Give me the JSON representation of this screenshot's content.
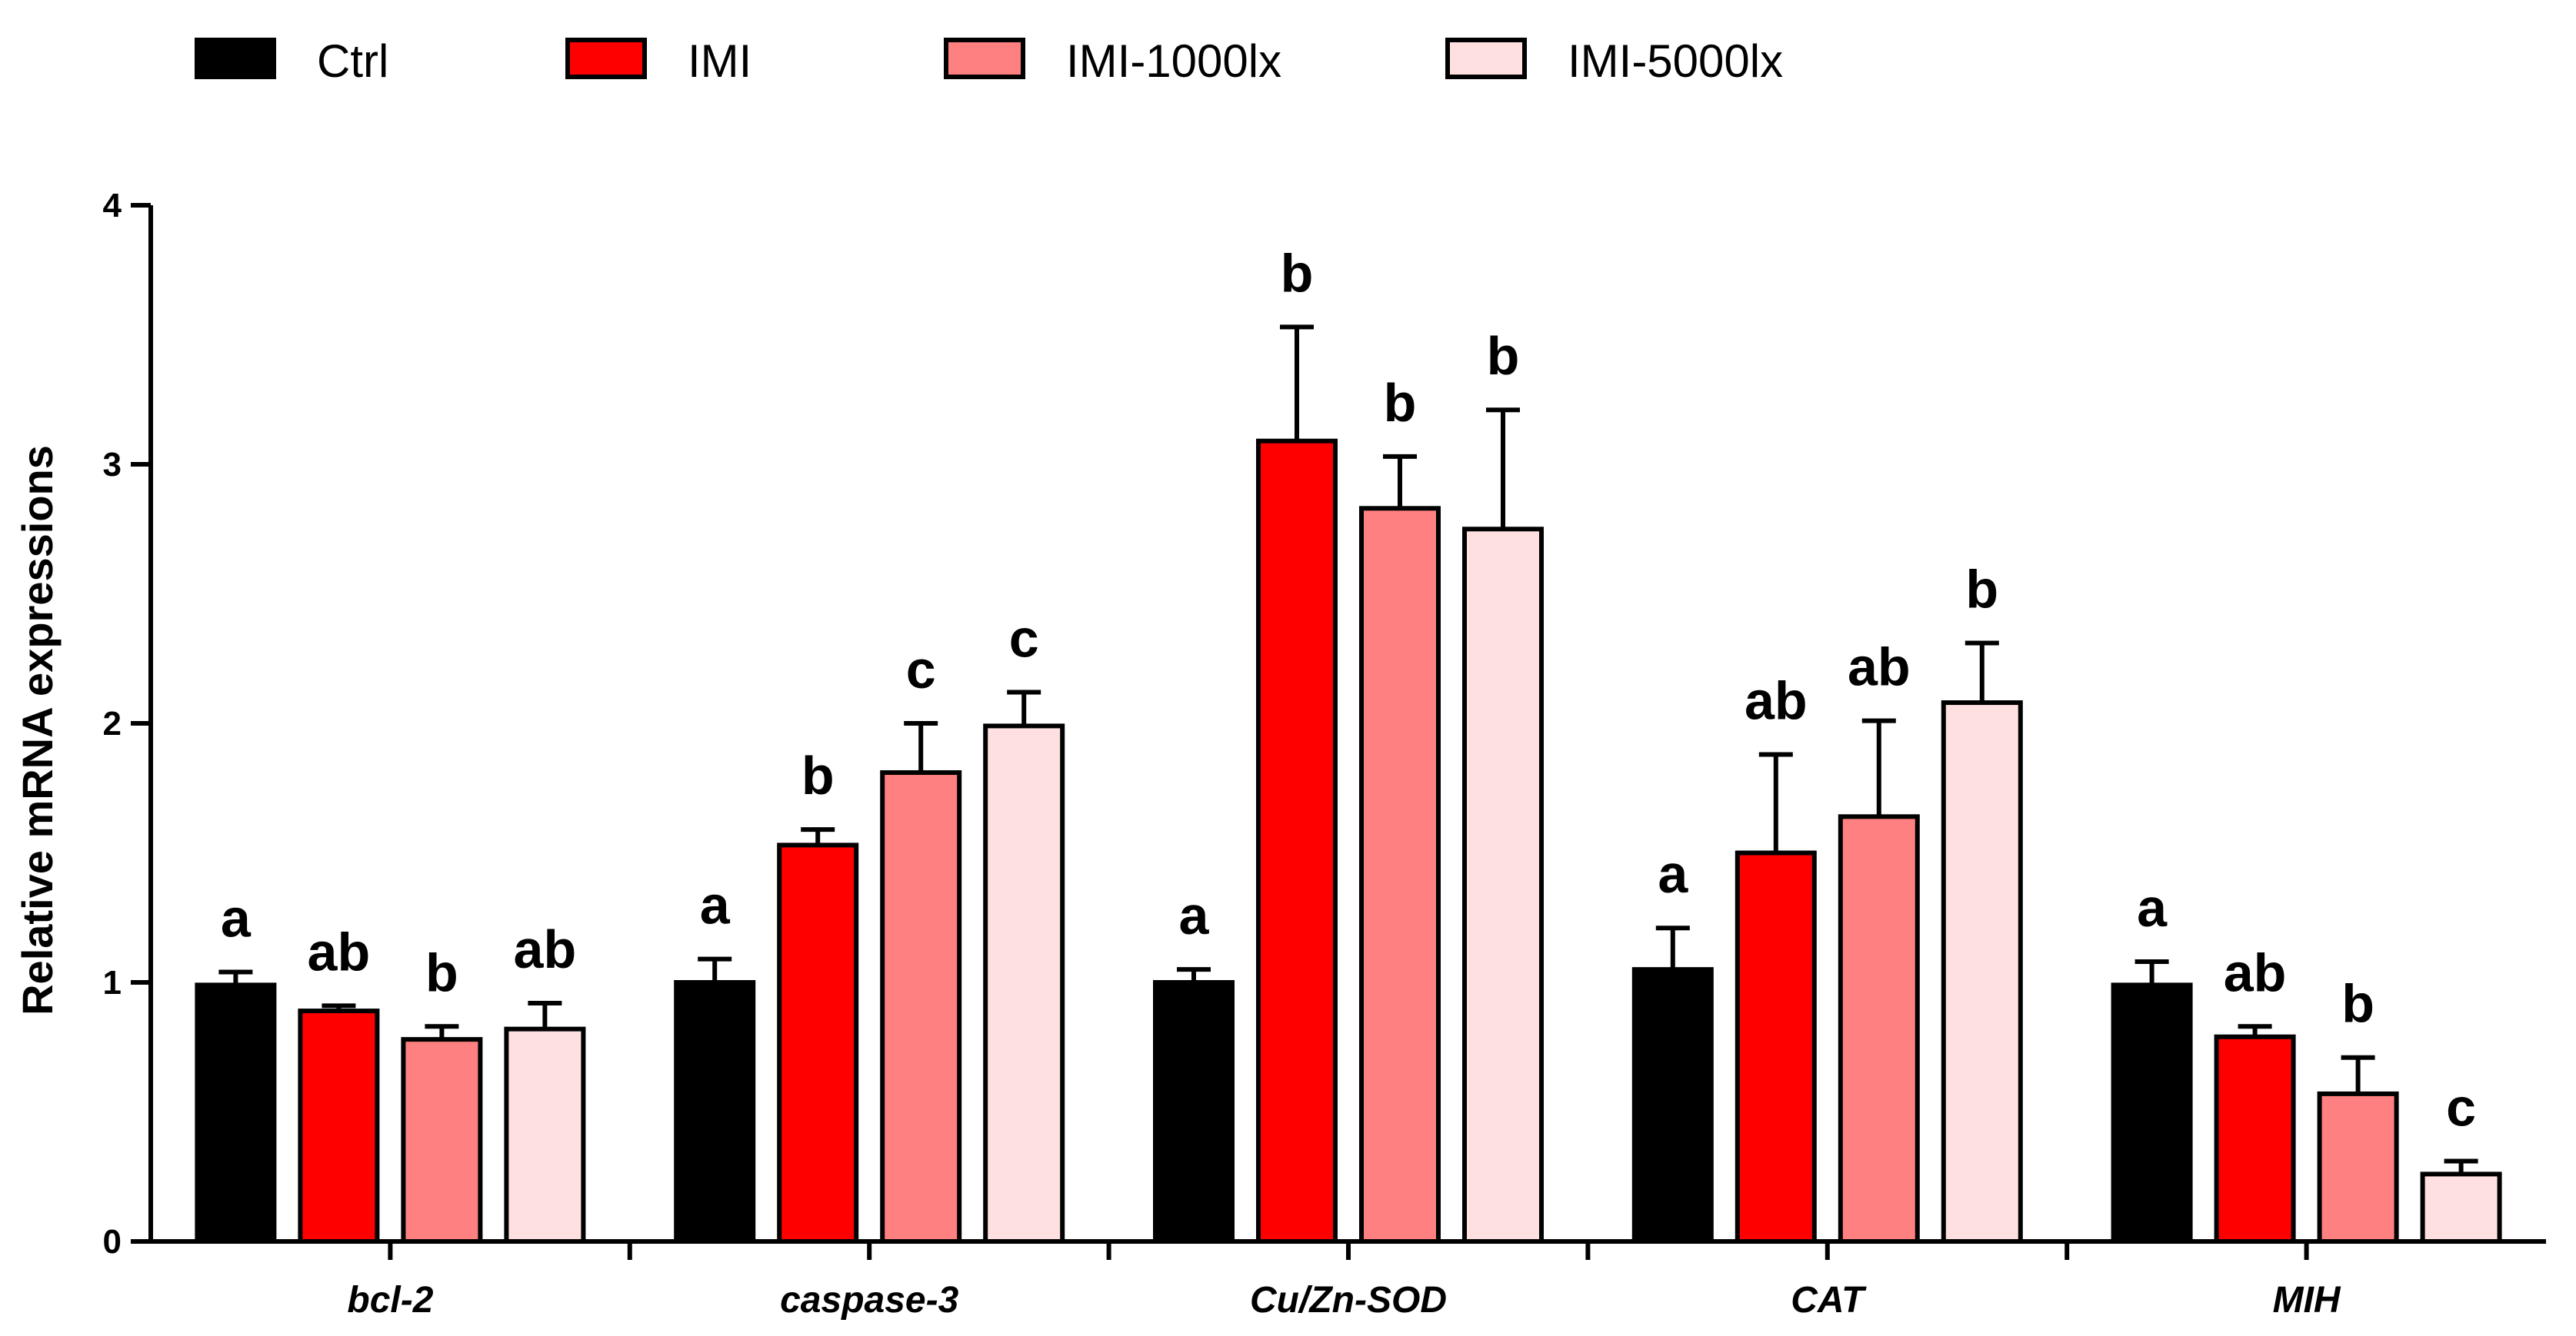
{
  "chart_data": {
    "type": "bar",
    "title": "",
    "xlabel": "",
    "ylabel": "Relative mRNA expressions",
    "ylim": [
      0,
      4
    ],
    "yticks": [
      "0",
      "1",
      "2",
      "3",
      "4"
    ],
    "grid": false,
    "legend_position": "top",
    "categories": [
      "bcl-2",
      "caspase-3",
      "Cu/Zn-SOD",
      "CAT",
      "MIH"
    ],
    "series": [
      {
        "name": "Ctrl",
        "color": "#000000",
        "values": [
          0.99,
          1.0,
          1.0,
          1.05,
          0.99
        ],
        "errors": [
          0.05,
          0.09,
          0.05,
          0.16,
          0.09
        ],
        "labels": [
          "a",
          "a",
          "a",
          "a",
          "a"
        ]
      },
      {
        "name": "IMI",
        "color": "#ff0000",
        "values": [
          0.89,
          1.53,
          3.09,
          1.5,
          0.79
        ],
        "errors": [
          0.02,
          0.06,
          0.44,
          0.38,
          0.04
        ],
        "labels": [
          "ab",
          "b",
          "b",
          "ab",
          "ab"
        ]
      },
      {
        "name": "IMI-1000lx",
        "color": "#ff8080",
        "values": [
          0.78,
          1.81,
          2.83,
          1.64,
          0.57
        ],
        "errors": [
          0.05,
          0.19,
          0.2,
          0.37,
          0.14
        ],
        "labels": [
          "b",
          "c",
          "b",
          "ab",
          "b"
        ]
      },
      {
        "name": "IMI-5000lx",
        "color": "#ffe0e0",
        "values": [
          0.82,
          1.99,
          2.75,
          2.08,
          0.26
        ],
        "errors": [
          0.1,
          0.13,
          0.46,
          0.23,
          0.05
        ],
        "labels": [
          "ab",
          "c",
          "b",
          "b",
          "c"
        ]
      }
    ]
  }
}
